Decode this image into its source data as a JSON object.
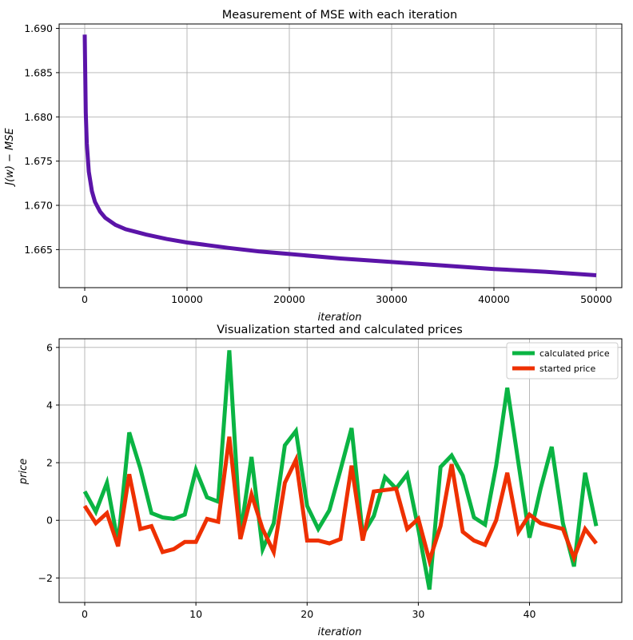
{
  "chart_data": [
    {
      "type": "line",
      "title": "Measurement of MSE with each iteration",
      "xlabel": "iteration",
      "ylabel": "J(w) − MSE",
      "xlim": [
        -2500,
        52500
      ],
      "ylim": [
        1.6607,
        1.6905
      ],
      "xticks": [
        0,
        10000,
        20000,
        30000,
        40000,
        50000
      ],
      "xtick_labels": [
        "0",
        "10000",
        "20000",
        "30000",
        "40000",
        "50000"
      ],
      "yticks": [
        1.665,
        1.67,
        1.675,
        1.68,
        1.685,
        1.69
      ],
      "ytick_labels": [
        "1.665",
        "1.670",
        "1.675",
        "1.680",
        "1.685",
        "1.690"
      ],
      "grid": true,
      "legend": null,
      "series": [
        {
          "color": "#5b14a8",
          "x": [
            0,
            100,
            200,
            400,
            700,
            1000,
            1500,
            2000,
            3000,
            4000,
            5000,
            6000,
            8000,
            10000,
            12000,
            14000,
            17000,
            20000,
            25000,
            30000,
            35000,
            40000,
            45000,
            50000
          ],
          "y": [
            1.6893,
            1.6805,
            1.677,
            1.6738,
            1.6716,
            1.6704,
            1.6693,
            1.6686,
            1.6678,
            1.6673,
            1.667,
            1.6667,
            1.6662,
            1.6658,
            1.6655,
            1.6652,
            1.6648,
            1.6645,
            1.664,
            1.6636,
            1.6632,
            1.6628,
            1.6625,
            1.6621
          ]
        }
      ]
    },
    {
      "type": "line",
      "title": "Visualization started and calculated prices",
      "xlabel": "iteration",
      "ylabel": "price",
      "xlim": [
        -2.3,
        48.3
      ],
      "ylim": [
        -2.85,
        6.3
      ],
      "xticks": [
        0,
        10,
        20,
        30,
        40
      ],
      "xtick_labels": [
        "0",
        "10",
        "20",
        "30",
        "40"
      ],
      "yticks": [
        -2,
        0,
        2,
        4,
        6
      ],
      "ytick_labels": [
        "−2",
        "0",
        "2",
        "4",
        "6"
      ],
      "grid": true,
      "legend": "top-right",
      "series": [
        {
          "name": "calculated price",
          "color": "#0ab443",
          "x": [
            0,
            1,
            2,
            3,
            4,
            5,
            6,
            7,
            8,
            9,
            10,
            11,
            12,
            13,
            14,
            15,
            16,
            17,
            18,
            19,
            20,
            21,
            22,
            23,
            24,
            25,
            26,
            27,
            28,
            29,
            30,
            31,
            32,
            33,
            34,
            35,
            36,
            37,
            38,
            39,
            40,
            41,
            42,
            43,
            44,
            45,
            46
          ],
          "y": [
            1.0,
            0.3,
            1.3,
            -0.8,
            3.05,
            1.8,
            0.25,
            0.1,
            0.05,
            0.2,
            1.75,
            0.8,
            0.65,
            5.9,
            -0.5,
            2.2,
            -1.0,
            -0.1,
            2.6,
            3.1,
            0.5,
            -0.3,
            0.35,
            1.75,
            3.2,
            -0.5,
            0.15,
            1.5,
            1.1,
            1.6,
            -0.3,
            -2.4,
            1.85,
            2.25,
            1.55,
            0.1,
            -0.15,
            1.9,
            4.6,
            2.0,
            -0.6,
            1.1,
            2.55,
            -0.1,
            -1.6,
            1.65,
            -0.2
          ]
        },
        {
          "name": "started price",
          "color": "#ee3000",
          "x": [
            0,
            1,
            2,
            3,
            4,
            5,
            6,
            7,
            8,
            9,
            10,
            11,
            12,
            13,
            14,
            15,
            16,
            17,
            18,
            19,
            20,
            21,
            22,
            23,
            24,
            25,
            26,
            27,
            28,
            29,
            30,
            31,
            32,
            33,
            34,
            35,
            36,
            37,
            38,
            39,
            40,
            41,
            42,
            43,
            44,
            45,
            46
          ],
          "y": [
            0.5,
            -0.1,
            0.25,
            -0.9,
            1.6,
            -0.3,
            -0.2,
            -1.1,
            -1.0,
            -0.75,
            -0.75,
            0.05,
            -0.05,
            2.9,
            -0.65,
            0.9,
            -0.3,
            -1.1,
            1.3,
            2.1,
            -0.7,
            -0.7,
            -0.8,
            -0.65,
            1.9,
            -0.7,
            1.0,
            1.05,
            1.1,
            -0.3,
            0.05,
            -1.4,
            -0.2,
            1.95,
            -0.4,
            -0.7,
            -0.85,
            0.0,
            1.65,
            -0.4,
            0.2,
            -0.1,
            -0.2,
            -0.3,
            -1.3,
            -0.3,
            -0.8
          ]
        }
      ]
    }
  ]
}
